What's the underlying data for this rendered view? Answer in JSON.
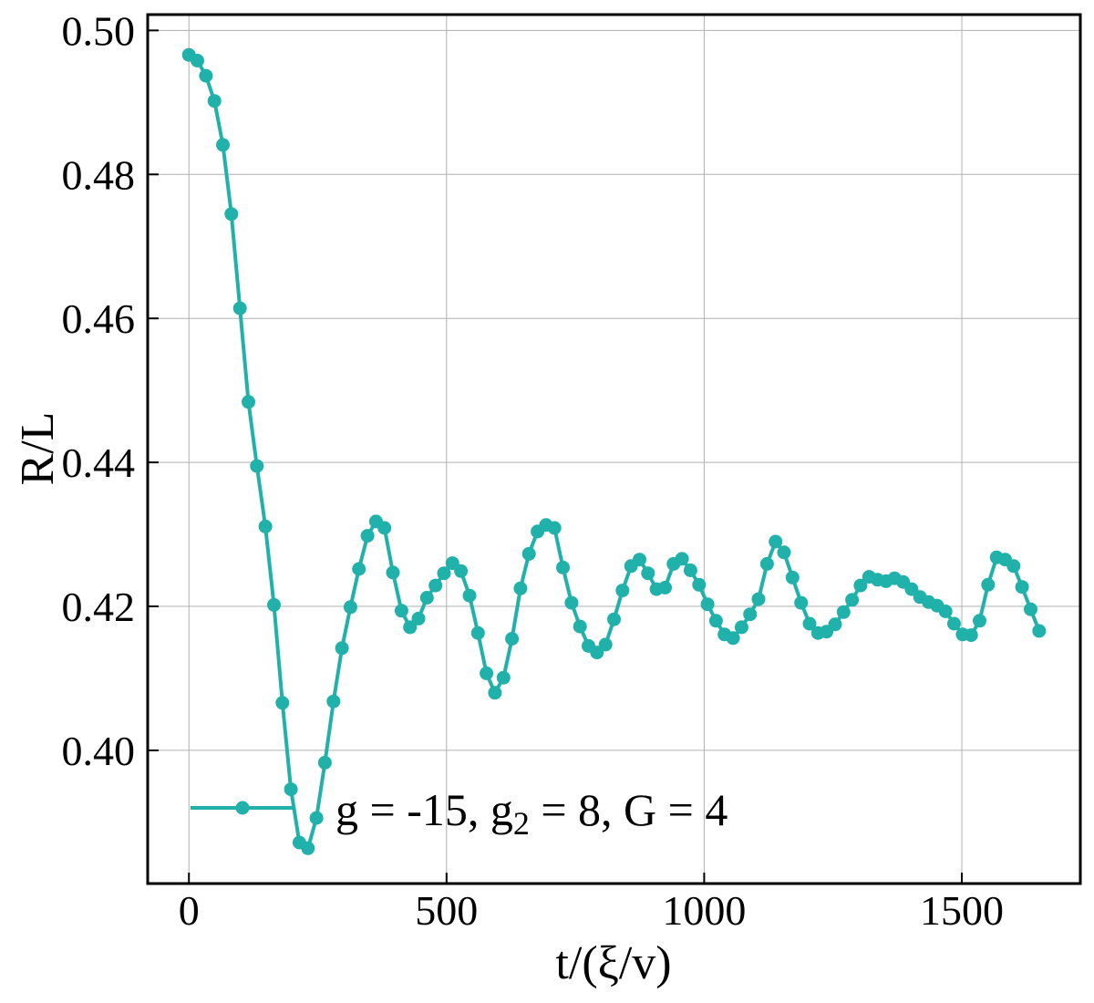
{
  "chart_data": {
    "type": "line",
    "xlabel": "t/(ξ/v)",
    "ylabel": "R/L",
    "xlim": [
      -80,
      1730
    ],
    "ylim": [
      0.3815,
      0.5022
    ],
    "x_ticks": [
      0,
      500,
      1000,
      1500
    ],
    "x_tick_labels": [
      "0",
      "500",
      "1000",
      "1500"
    ],
    "y_ticks": [
      0.4,
      0.42,
      0.44,
      0.46,
      0.48,
      0.5
    ],
    "y_tick_labels": [
      "0.40",
      "0.42",
      "0.44",
      "0.46",
      "0.48",
      "0.50"
    ],
    "grid": true,
    "legend_position": "lower-left",
    "legend": {
      "text_main": "g = -15, g",
      "text_sub": "2",
      "text_rest": " = 8, G = 4"
    },
    "series": [
      {
        "name": "g = -15, g2 = 8, G = 4",
        "color": "#20b2aa",
        "marker": "circle",
        "x": [
          0,
          16.5,
          33,
          49.5,
          66,
          82.5,
          99,
          115.5,
          132,
          148.5,
          165,
          181.5,
          198,
          214.5,
          231,
          247.5,
          264,
          280.5,
          297,
          313.5,
          330,
          346.5,
          363,
          379.5,
          396,
          412.5,
          429,
          445.5,
          462,
          478.5,
          495,
          511.5,
          528,
          544.5,
          561,
          577.5,
          594,
          610.5,
          627,
          643.5,
          660,
          676.5,
          693,
          709.5,
          726,
          742.5,
          759,
          775.5,
          792,
          808.5,
          825,
          841.5,
          858,
          874.5,
          891,
          907.5,
          924,
          940.5,
          957,
          973.5,
          990,
          1006.5,
          1023,
          1039.5,
          1056,
          1072.5,
          1089,
          1105.5,
          1122,
          1138.5,
          1155,
          1171.5,
          1188,
          1204.5,
          1221,
          1237.5,
          1254,
          1270.5,
          1287,
          1303.5,
          1320,
          1336.5,
          1353,
          1369.5,
          1386,
          1402.5,
          1419,
          1435.5,
          1452,
          1468.5,
          1485,
          1501.5,
          1518,
          1534.5,
          1551,
          1567.5,
          1584,
          1600.5,
          1617,
          1633.5,
          1650
        ],
        "y": [
          0.4966,
          0.4958,
          0.4937,
          0.4902,
          0.4841,
          0.4745,
          0.4614,
          0.4484,
          0.4395,
          0.4311,
          0.4202,
          0.4066,
          0.3946,
          0.3872,
          0.3864,
          0.3906,
          0.3983,
          0.4068,
          0.4142,
          0.4199,
          0.4252,
          0.4298,
          0.4318,
          0.4309,
          0.4247,
          0.4194,
          0.4171,
          0.4183,
          0.4212,
          0.4229,
          0.4246,
          0.426,
          0.4249,
          0.4215,
          0.4163,
          0.4107,
          0.408,
          0.4101,
          0.4155,
          0.4225,
          0.4273,
          0.4304,
          0.4313,
          0.4309,
          0.4254,
          0.4205,
          0.4172,
          0.4145,
          0.4136,
          0.4147,
          0.4182,
          0.4222,
          0.4256,
          0.4265,
          0.4246,
          0.4224,
          0.4226,
          0.4259,
          0.4266,
          0.425,
          0.423,
          0.4203,
          0.418,
          0.4161,
          0.4156,
          0.4171,
          0.4189,
          0.421,
          0.4259,
          0.429,
          0.4275,
          0.424,
          0.4205,
          0.4176,
          0.4163,
          0.4165,
          0.4175,
          0.4192,
          0.4209,
          0.4229,
          0.4241,
          0.4237,
          0.4235,
          0.4239,
          0.4234,
          0.4224,
          0.4213,
          0.4206,
          0.4201,
          0.4193,
          0.4176,
          0.4161,
          0.416,
          0.418,
          0.423,
          0.4268,
          0.4265,
          0.4256,
          0.4227,
          0.4196,
          0.4166
        ]
      }
    ]
  }
}
